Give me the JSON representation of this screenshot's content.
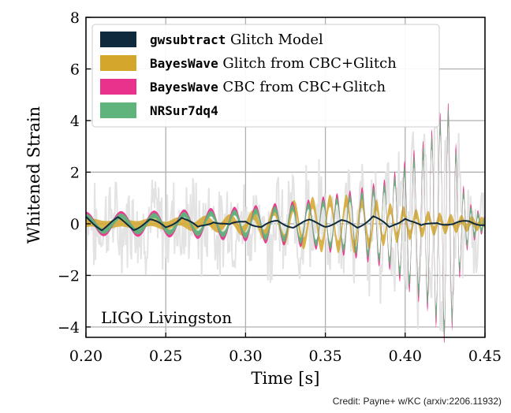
{
  "chart_data": {
    "type": "line",
    "xlabel": "Time [s]",
    "ylabel": "Whitened Strain",
    "xlim": [
      0.2,
      0.45
    ],
    "ylim": [
      -4.4,
      8
    ],
    "xticks": [
      0.2,
      0.25,
      0.3,
      0.35,
      0.4,
      0.45
    ],
    "xtick_labels": [
      "0.20",
      "0.25",
      "0.30",
      "0.35",
      "0.40",
      "0.45"
    ],
    "yticks": [
      -4,
      -2,
      0,
      2,
      4,
      6,
      8
    ],
    "ytick_labels": [
      "−4",
      "−2",
      "0",
      "2",
      "4",
      "6",
      "8"
    ],
    "grid": true,
    "legend_position": "upper-left",
    "annotation": "LIGO Livingston",
    "series": [
      {
        "name_code": "gwsubtract",
        "name_rest": " Glitch Model",
        "color": "#0f2a3d",
        "style": "line",
        "x": [
          0.2,
          0.21,
          0.22,
          0.23,
          0.24,
          0.25,
          0.26,
          0.27,
          0.28,
          0.29,
          0.3,
          0.31,
          0.32,
          0.33,
          0.34,
          0.35,
          0.36,
          0.37,
          0.38,
          0.39,
          0.4,
          0.41,
          0.42,
          0.43,
          0.44,
          0.45
        ],
        "y": [
          0.25,
          -0.2,
          0.2,
          -0.2,
          0.15,
          -0.15,
          0.3,
          -0.2,
          0.15,
          -0.1,
          0.15,
          -0.15,
          0.1,
          -0.1,
          0.1,
          -0.05,
          0.1,
          -0.15,
          0.35,
          -0.2,
          0.3,
          -0.15,
          0.1,
          -0.05,
          0.1,
          0
        ]
      },
      {
        "name_code": "BayesWave",
        "name_rest": " Glitch from CBC+Glitch",
        "color": "#d4a72c",
        "style": "band",
        "f0": 35,
        "f1": 60,
        "phase": 0.5,
        "amp_x": [
          0.2,
          0.23,
          0.26,
          0.29,
          0.31,
          0.33,
          0.35,
          0.37,
          0.39,
          0.41,
          0.43,
          0.45
        ],
        "amp_y": [
          0.05,
          0.05,
          0.1,
          0.2,
          0.4,
          0.7,
          0.9,
          0.9,
          0.6,
          0.35,
          0.2,
          0.1
        ],
        "band_width": 0.25
      },
      {
        "name_code": "BayesWave",
        "name_rest": " CBC from CBC+Glitch",
        "color": "#e8328c",
        "style": "band",
        "f0": 30,
        "f1": 72,
        "phase": 1.57,
        "amp_x": [
          0.2,
          0.25,
          0.3,
          0.34,
          0.37,
          0.39,
          0.405,
          0.415,
          0.425,
          0.428,
          0.435,
          0.44,
          0.45
        ],
        "amp_y": [
          0.35,
          0.4,
          0.55,
          0.8,
          1.2,
          1.6,
          2.6,
          3.2,
          4.4,
          4.4,
          1.6,
          0.7,
          0.2
        ],
        "band_width": 0.16
      },
      {
        "name_code": "NRSur7dq4",
        "name_rest": "",
        "color": "#5fb47c",
        "style": "band",
        "f0": 30,
        "f1": 72,
        "phase": 1.57,
        "amp_x": [
          0.2,
          0.25,
          0.3,
          0.34,
          0.37,
          0.39,
          0.405,
          0.415,
          0.425,
          0.428,
          0.435,
          0.44,
          0.45
        ],
        "amp_y": [
          0.28,
          0.32,
          0.45,
          0.7,
          1.05,
          1.45,
          2.4,
          3.0,
          4.2,
          4.2,
          1.4,
          0.6,
          0.15
        ],
        "band_width": 0.14
      }
    ]
  },
  "credit": "Credit: Payne+ w/KC (arxiv:2206.11932)"
}
